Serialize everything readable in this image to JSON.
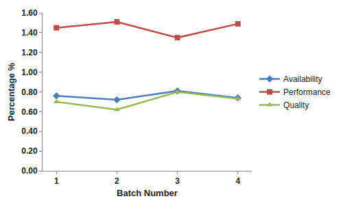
{
  "chart_data": {
    "type": "line",
    "xlabel": "Batch Number",
    "ylabel": "Percentage %",
    "categories": [
      "1",
      "2",
      "3",
      "4"
    ],
    "series": [
      {
        "name": "Availability",
        "color": "#4a7ebb",
        "marker": "diamond",
        "values": [
          0.76,
          0.72,
          0.81,
          0.74
        ]
      },
      {
        "name": "Performance",
        "color": "#be4b48",
        "marker": "square",
        "values": [
          1.45,
          1.51,
          1.35,
          1.49
        ]
      },
      {
        "name": "Quality",
        "color": "#98b954",
        "marker": "triangle-up",
        "values": [
          0.7,
          0.62,
          0.8,
          0.73
        ]
      }
    ],
    "ylim": [
      0,
      1.6
    ],
    "yticks": [
      {
        "value": 0,
        "label": "0.00"
      },
      {
        "value": 0.2,
        "label": "0.20"
      },
      {
        "value": 0.4,
        "label": "0.40"
      },
      {
        "value": 0.6,
        "label": "0.60"
      },
      {
        "value": 0.8,
        "label": "0.80"
      },
      {
        "value": 1.0,
        "label": "1.00"
      },
      {
        "value": 1.2,
        "label": "1.20"
      },
      {
        "value": 1.4,
        "label": "1.40"
      },
      {
        "value": 1.6,
        "label": "1.60"
      }
    ],
    "grid": false,
    "legend": "right"
  }
}
